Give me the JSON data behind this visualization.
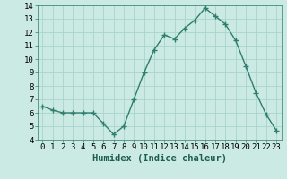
{
  "x": [
    0,
    1,
    2,
    3,
    4,
    5,
    6,
    7,
    8,
    9,
    10,
    11,
    12,
    13,
    14,
    15,
    16,
    17,
    18,
    19,
    20,
    21,
    22,
    23
  ],
  "y": [
    6.5,
    6.2,
    6.0,
    6.0,
    6.0,
    6.0,
    5.2,
    4.4,
    5.0,
    7.0,
    9.0,
    10.7,
    11.8,
    11.5,
    12.3,
    12.9,
    13.8,
    13.2,
    12.6,
    11.4,
    9.5,
    7.5,
    5.9,
    4.7
  ],
  "xlabel": "Humidex (Indice chaleur)",
  "ylim": [
    4,
    14
  ],
  "xlim": [
    -0.5,
    23.5
  ],
  "yticks": [
    4,
    5,
    6,
    7,
    8,
    9,
    10,
    11,
    12,
    13,
    14
  ],
  "xtick_labels": [
    "0",
    "1",
    "2",
    "3",
    "4",
    "5",
    "6",
    "7",
    "8",
    "9",
    "10",
    "11",
    "12",
    "13",
    "14",
    "15",
    "16",
    "17",
    "18",
    "19",
    "20",
    "21",
    "22",
    "23"
  ],
  "line_color": "#2e7d6e",
  "marker_color": "#2e7d6e",
  "bg_color": "#cceae4",
  "grid_color": "#aad4ce",
  "tick_label_fontsize": 6.5,
  "xlabel_fontsize": 7.5
}
